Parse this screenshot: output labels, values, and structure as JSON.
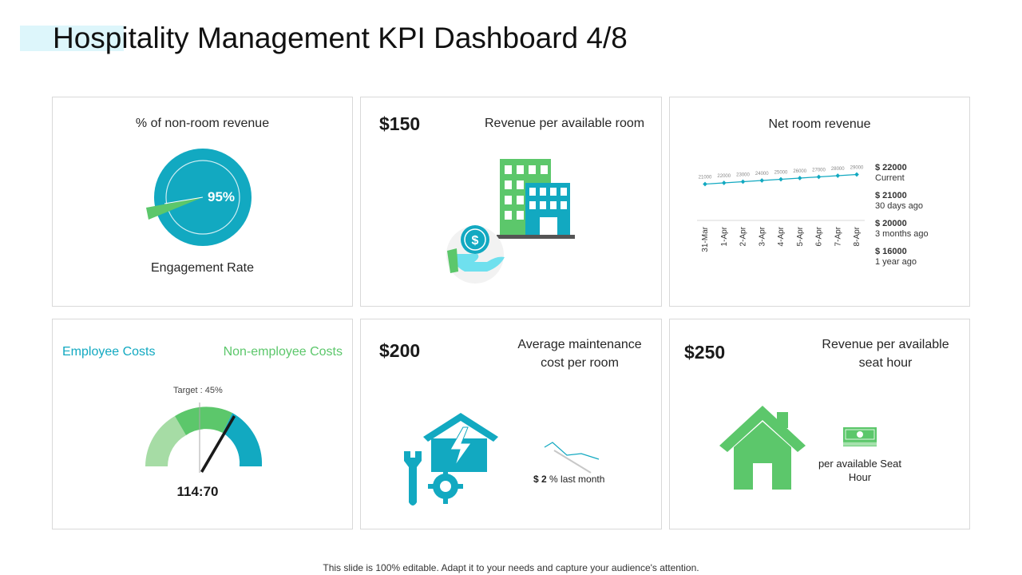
{
  "title": "Hospitality Management KPI Dashboard 4/8",
  "footer": "This slide is 100% editable. Adapt it to your needs and capture your audience's attention.",
  "colors": {
    "teal": "#12a9c1",
    "green": "#5cc76b",
    "light_green": "#a6dca5",
    "light_teal": "#cfeef4"
  },
  "card1": {
    "label": "% of non-room revenue",
    "gauge_value": "95%",
    "gauge_fraction": 0.95,
    "caption": "Engagement Rate",
    "icon": "pie-gauge-icon"
  },
  "card2": {
    "value": "$150",
    "label": "Revenue per available room",
    "icon": "building-dollar-icon",
    "coin_symbol": "$"
  },
  "card3": {
    "label": "Net room revenue",
    "legend": [
      {
        "value": "$ 22000",
        "period": "Current"
      },
      {
        "value": "$ 21000",
        "period": "30 days ago"
      },
      {
        "value": "$ 20000",
        "period": "3 months ago"
      },
      {
        "value": "$ 16000",
        "period": "1 year ago"
      }
    ]
  },
  "card4": {
    "left_label": "Employee Costs",
    "right_label": "Non-employee Costs",
    "target_label": "Target : 45%",
    "ratio": "114:70",
    "icon": "speedometer-gauge-icon"
  },
  "card5": {
    "value": "$200",
    "label_line1": "Average maintenance",
    "label_line2": "cost per room",
    "trend_value": "$ 2",
    "trend_text": "% last month",
    "icon": "house-repair-icon"
  },
  "card6": {
    "value": "$250",
    "label_line1": "Revenue per available",
    "label_line2": "seat hour",
    "caption_line1": "per available Seat",
    "caption_line2": "Hour",
    "icon": "house-icon",
    "money_icon": "cash-stack-icon"
  },
  "chart_data": {
    "type": "line",
    "title": "Net room revenue",
    "categories": [
      "31-Mar",
      "1-Apr",
      "2-Apr",
      "3-Apr",
      "4-Apr",
      "5-Apr",
      "6-Apr",
      "7-Apr",
      "8-Apr"
    ],
    "series": [
      {
        "values": [
          21000,
          22000,
          23000,
          24000,
          25000,
          26000,
          27000,
          28000,
          29000
        ]
      }
    ],
    "ylim": [
      0,
      40000
    ],
    "grid": false,
    "color": "#12a9c1"
  }
}
